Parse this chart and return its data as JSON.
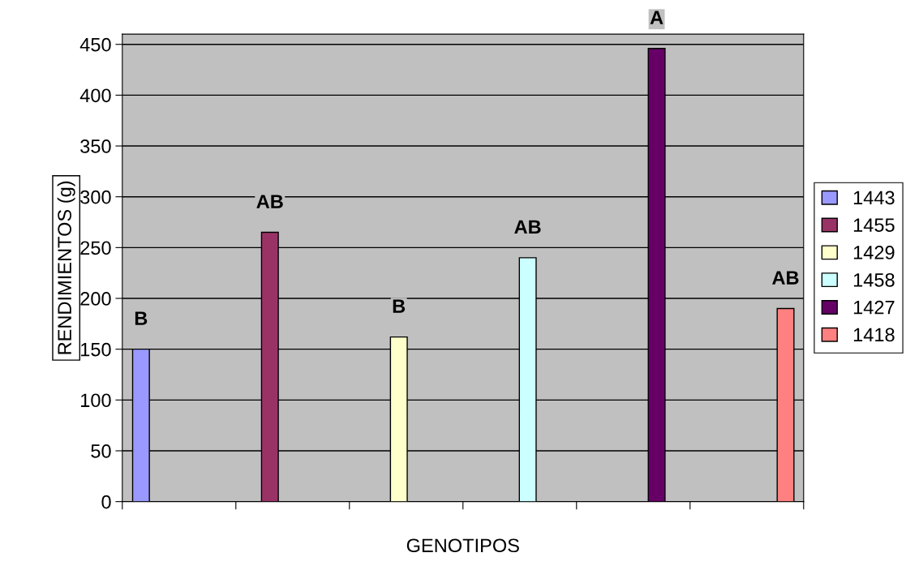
{
  "chart_data": {
    "type": "bar",
    "xlabel": "GENOTIPOS",
    "ylabel": "RENDIMIENTOS (g)",
    "categories": [
      null,
      null,
      null,
      null,
      null,
      null
    ],
    "series": [
      {
        "name": "1443",
        "color": "#9999ff",
        "values": [
          150,
          null,
          null,
          null,
          null,
          null
        ]
      },
      {
        "name": "1455",
        "color": "#993366",
        "values": [
          null,
          265,
          null,
          null,
          null,
          null
        ]
      },
      {
        "name": "1429",
        "color": "#ffffcc",
        "values": [
          null,
          null,
          162,
          null,
          null,
          null
        ]
      },
      {
        "name": "1458",
        "color": "#ccffff",
        "values": [
          null,
          null,
          null,
          240,
          null,
          null
        ]
      },
      {
        "name": "1427",
        "color": "#660066",
        "values": [
          null,
          null,
          null,
          null,
          446,
          null
        ]
      },
      {
        "name": "1418",
        "color": "#ff8080",
        "values": [
          null,
          null,
          null,
          null,
          null,
          190
        ]
      }
    ],
    "annotations": [
      "B",
      "AB",
      "B",
      "AB",
      "A",
      "AB"
    ],
    "ylim": [
      0,
      460
    ],
    "yticks": [
      0,
      50,
      100,
      150,
      200,
      250,
      300,
      350,
      400,
      450
    ],
    "grid": "y",
    "legend": "right"
  }
}
